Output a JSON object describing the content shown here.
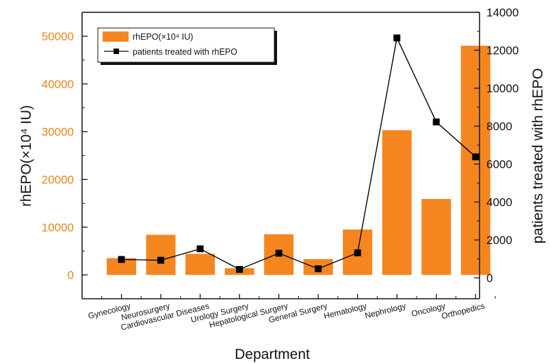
{
  "chart_data": {
    "type": "bar",
    "categories": [
      "Gynecology",
      "Neurosurgery",
      "Cardiovascular Diseases",
      "Urology Surgery",
      "Hepatological Surgery",
      "General Surgery",
      "Hematology",
      "Nephrology",
      "Oncology",
      "Orthopedics"
    ],
    "series": [
      {
        "name": "rhEPO(×10⁴ IU)",
        "type": "bar",
        "axis": "left",
        "color": "#f5861f",
        "values": [
          3500,
          8400,
          4400,
          1400,
          8500,
          3300,
          9500,
          30300,
          15900,
          48000
        ]
      },
      {
        "name": "patients treated with rhEPO",
        "type": "line",
        "axis": "right",
        "color": "#000000",
        "marker": "square",
        "values": [
          970,
          930,
          1530,
          450,
          1300,
          480,
          1320,
          12650,
          8220,
          6380
        ]
      }
    ],
    "xlabel": "Department",
    "ylabel_left": "rhEPO(×10⁴ IU)",
    "ylabel_right": "patients treated with rhEPO",
    "ylim_left": [
      -5000,
      55000
    ],
    "ylim_right": [
      -1100,
      14000
    ],
    "yticks_left": [
      "0",
      "10000",
      "20000",
      "30000",
      "40000",
      "50000"
    ],
    "yticks_right": [
      "0",
      "2000",
      "4000",
      "6000",
      "8000",
      "10000",
      "12000",
      "14000"
    ],
    "legend_position": "top-left",
    "grid": false,
    "accent_color": "#e8861a"
  }
}
